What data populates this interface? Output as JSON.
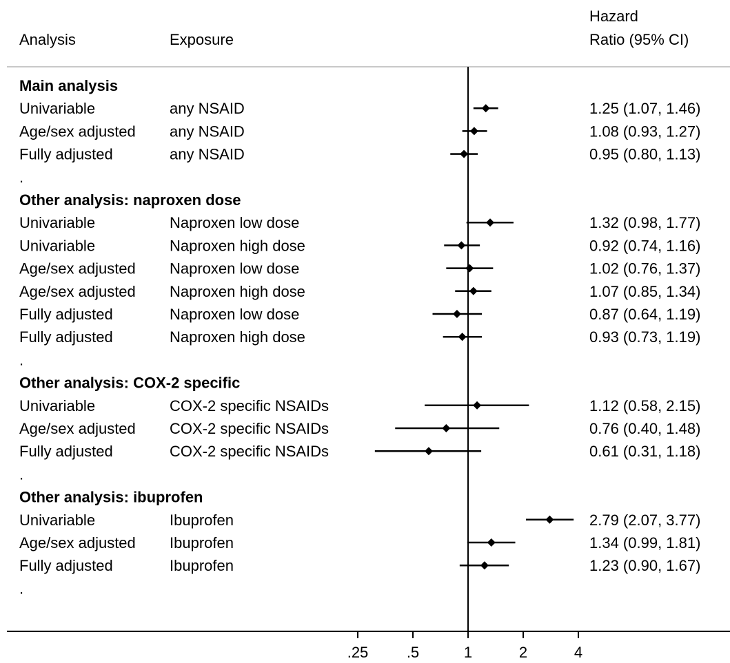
{
  "chart_data": {
    "type": "forest",
    "xscale": "log2",
    "xlim": [
      0.25,
      4
    ],
    "reference_line": 1,
    "grid": false,
    "headers": {
      "analysis": "Analysis",
      "exposure": "Exposure",
      "hr_line1": "Hazard",
      "hr_line2": "Ratio (95% CI)"
    },
    "x_ticks": [
      {
        "label": ".25",
        "value": 0.25
      },
      {
        "label": ".5",
        "value": 0.5
      },
      {
        "label": "1",
        "value": 1
      },
      {
        "label": "2",
        "value": 2
      },
      {
        "label": "4",
        "value": 4
      }
    ],
    "rows": [
      {
        "kind": "header",
        "label": "Main analysis"
      },
      {
        "kind": "data",
        "analysis": "Univariable",
        "exposure": "any NSAID",
        "hr": 1.25,
        "lo": 1.07,
        "hi": 1.46,
        "ci_text": "1.25 (1.07, 1.46)"
      },
      {
        "kind": "data",
        "analysis": "Age/sex adjusted",
        "exposure": "any NSAID",
        "hr": 1.08,
        "lo": 0.93,
        "hi": 1.27,
        "ci_text": "1.08 (0.93, 1.27)"
      },
      {
        "kind": "data",
        "analysis": "Fully adjusted",
        "exposure": "any NSAID",
        "hr": 0.95,
        "lo": 0.8,
        "hi": 1.13,
        "ci_text": "0.95 (0.80, 1.13)"
      },
      {
        "kind": "spacer",
        "label": "."
      },
      {
        "kind": "header",
        "label": "Other analysis: naproxen dose"
      },
      {
        "kind": "data",
        "analysis": "Univariable",
        "exposure": "Naproxen low dose",
        "hr": 1.32,
        "lo": 0.98,
        "hi": 1.77,
        "ci_text": "1.32 (0.98, 1.77)"
      },
      {
        "kind": "data",
        "analysis": "Univariable",
        "exposure": "Naproxen high dose",
        "hr": 0.92,
        "lo": 0.74,
        "hi": 1.16,
        "ci_text": "0.92 (0.74, 1.16)"
      },
      {
        "kind": "data",
        "analysis": "Age/sex adjusted",
        "exposure": "Naproxen low dose",
        "hr": 1.02,
        "lo": 0.76,
        "hi": 1.37,
        "ci_text": "1.02 (0.76, 1.37)"
      },
      {
        "kind": "data",
        "analysis": "Age/sex adjusted",
        "exposure": "Naproxen high dose",
        "hr": 1.07,
        "lo": 0.85,
        "hi": 1.34,
        "ci_text": "1.07 (0.85, 1.34)"
      },
      {
        "kind": "data",
        "analysis": "Fully adjusted",
        "exposure": "Naproxen low dose",
        "hr": 0.87,
        "lo": 0.64,
        "hi": 1.19,
        "ci_text": "0.87 (0.64, 1.19)"
      },
      {
        "kind": "data",
        "analysis": "Fully adjusted",
        "exposure": "Naproxen high dose",
        "hr": 0.93,
        "lo": 0.73,
        "hi": 1.19,
        "ci_text": "0.93 (0.73, 1.19)"
      },
      {
        "kind": "spacer",
        "label": "."
      },
      {
        "kind": "header",
        "label": "Other analysis: COX-2 specific"
      },
      {
        "kind": "data",
        "analysis": "Univariable",
        "exposure": "COX-2 specific NSAIDs",
        "hr": 1.12,
        "lo": 0.58,
        "hi": 2.15,
        "ci_text": "1.12 (0.58, 2.15)"
      },
      {
        "kind": "data",
        "analysis": "Age/sex adjusted",
        "exposure": "COX-2 specific NSAIDs",
        "hr": 0.76,
        "lo": 0.4,
        "hi": 1.48,
        "ci_text": "0.76 (0.40, 1.48)"
      },
      {
        "kind": "data",
        "analysis": "Fully adjusted",
        "exposure": "COX-2 specific NSAIDs",
        "hr": 0.61,
        "lo": 0.31,
        "hi": 1.18,
        "ci_text": "0.61 (0.31, 1.18)"
      },
      {
        "kind": "spacer",
        "label": "."
      },
      {
        "kind": "header",
        "label": "Other analysis: ibuprofen"
      },
      {
        "kind": "data",
        "analysis": "Univariable",
        "exposure": "Ibuprofen",
        "hr": 2.79,
        "lo": 2.07,
        "hi": 3.77,
        "ci_text": "2.79 (2.07, 3.77)"
      },
      {
        "kind": "data",
        "analysis": "Age/sex adjusted",
        "exposure": "Ibuprofen",
        "hr": 1.34,
        "lo": 0.99,
        "hi": 1.81,
        "ci_text": "1.34 (0.99, 1.81)"
      },
      {
        "kind": "data",
        "analysis": "Fully adjusted",
        "exposure": "Ibuprofen",
        "hr": 1.23,
        "lo": 0.9,
        "hi": 1.67,
        "ci_text": "1.23 (0.90, 1.67)"
      },
      {
        "kind": "spacer",
        "label": "."
      }
    ]
  }
}
